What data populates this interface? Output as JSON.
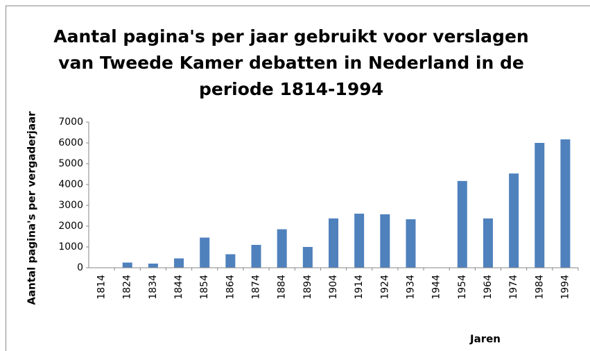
{
  "chart_data": {
    "type": "bar",
    "title": [
      "Aantal pagina's per jaar gebruikt voor verslagen",
      "van Tweede Kamer debatten in Nederland in de",
      "periode 1814-1994"
    ],
    "x_label": "Jaren",
    "y_label": "Aantal pagina's per vergaderjaar",
    "categories": [
      "1814",
      "1824",
      "1834",
      "1844",
      "1854",
      "1864",
      "1874",
      "1884",
      "1894",
      "1904",
      "1914",
      "1924",
      "1934",
      "1944",
      "1954",
      "1964",
      "1974",
      "1984",
      "1994"
    ],
    "values": [
      0,
      250,
      200,
      450,
      1450,
      650,
      1100,
      1850,
      1000,
      2370,
      2600,
      2570,
      2330,
      0,
      4170,
      2370,
      4530,
      6000,
      6170
    ],
    "color": "#4f81bd",
    "ylim": [
      0,
      7000
    ],
    "yticks": [
      0,
      1000,
      2000,
      3000,
      4000,
      5000,
      6000,
      7000
    ],
    "grid": false
  }
}
